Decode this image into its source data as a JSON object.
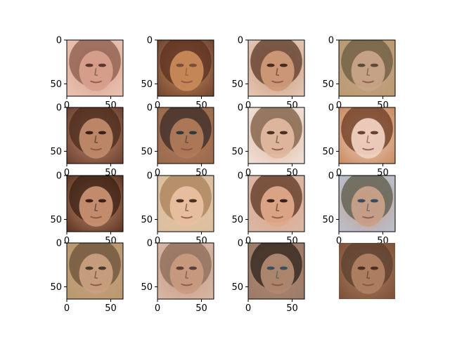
{
  "figure": {
    "rows": 4,
    "cols": 4,
    "background": "#ffffff"
  },
  "chart_data": {
    "type": "image-grid",
    "subplot_count": 16,
    "image_size": [
      64,
      64
    ],
    "xlim": [
      0,
      64
    ],
    "ylim": [
      64,
      0
    ],
    "x_ticks": [
      0,
      50
    ],
    "y_ticks": [
      0,
      50
    ],
    "tick_labels": {
      "x": [
        "0",
        "50"
      ],
      "y": [
        "0",
        "50"
      ]
    },
    "axes_hidden": [
      15
    ],
    "colors": {
      "axis": "#000000"
    },
    "images": [
      {
        "skin": "#d8a08c",
        "hair": "#8a5a4a",
        "bg": "#e9c3b2",
        "eyes": "#5a3a30"
      },
      {
        "skin": "#c98a5a",
        "hair": "#5a3020",
        "bg": "#6e4430",
        "eyes": "#7a5038"
      },
      {
        "skin": "#d09a78",
        "hair": "#5a3828",
        "bg": "#e2c8b8",
        "eyes": "#4a2a20"
      },
      {
        "skin": "#c8a488",
        "hair": "#6a5a40",
        "bg": "#b89a70",
        "eyes": "#5a4a38"
      },
      {
        "skin": "#c08a6a",
        "hair": "#4a2a1c",
        "bg": "#6a4030",
        "eyes": "#3a2018"
      },
      {
        "skin": "#b07a5a",
        "hair": "#3a2a28",
        "bg": "#9a6a4a",
        "eyes": "#2a3a40"
      },
      {
        "skin": "#e0b8a0",
        "hair": "#7a5a40",
        "bg": "#f0e0d8",
        "eyes": "#4a3020"
      },
      {
        "skin": "#f0d0c0",
        "hair": "#6a3a20",
        "bg": "#c88a60",
        "eyes": "#6a4030"
      },
      {
        "skin": "#c89070",
        "hair": "#3a2014",
        "bg": "#5a3422",
        "eyes": "#3a2018"
      },
      {
        "skin": "#e8c0a0",
        "hair": "#a88058",
        "bg": "#d8c0a0",
        "eyes": "#4a3020"
      },
      {
        "skin": "#e0a88a",
        "hair": "#5a3420",
        "bg": "#d8b8a8",
        "eyes": "#3a2018"
      },
      {
        "skin": "#c8a088",
        "hair": "#5a5a48",
        "bg": "#b8c0d0",
        "eyes": "#3a4a60"
      },
      {
        "skin": "#c8a080",
        "hair": "#6a5038",
        "bg": "#b89870",
        "eyes": "#4a3828"
      },
      {
        "skin": "#c89a80",
        "hair": "#8a6a58",
        "bg": "#d8b8a8",
        "eyes": "#5a4038"
      },
      {
        "skin": "#b08870",
        "hair": "#2a2018",
        "bg": "#9a7a68",
        "eyes": "#3a5060"
      },
      {
        "skin": "#b08060",
        "hair": "#5a4030",
        "bg": "#7a5038",
        "eyes": "#4a3020"
      }
    ]
  }
}
